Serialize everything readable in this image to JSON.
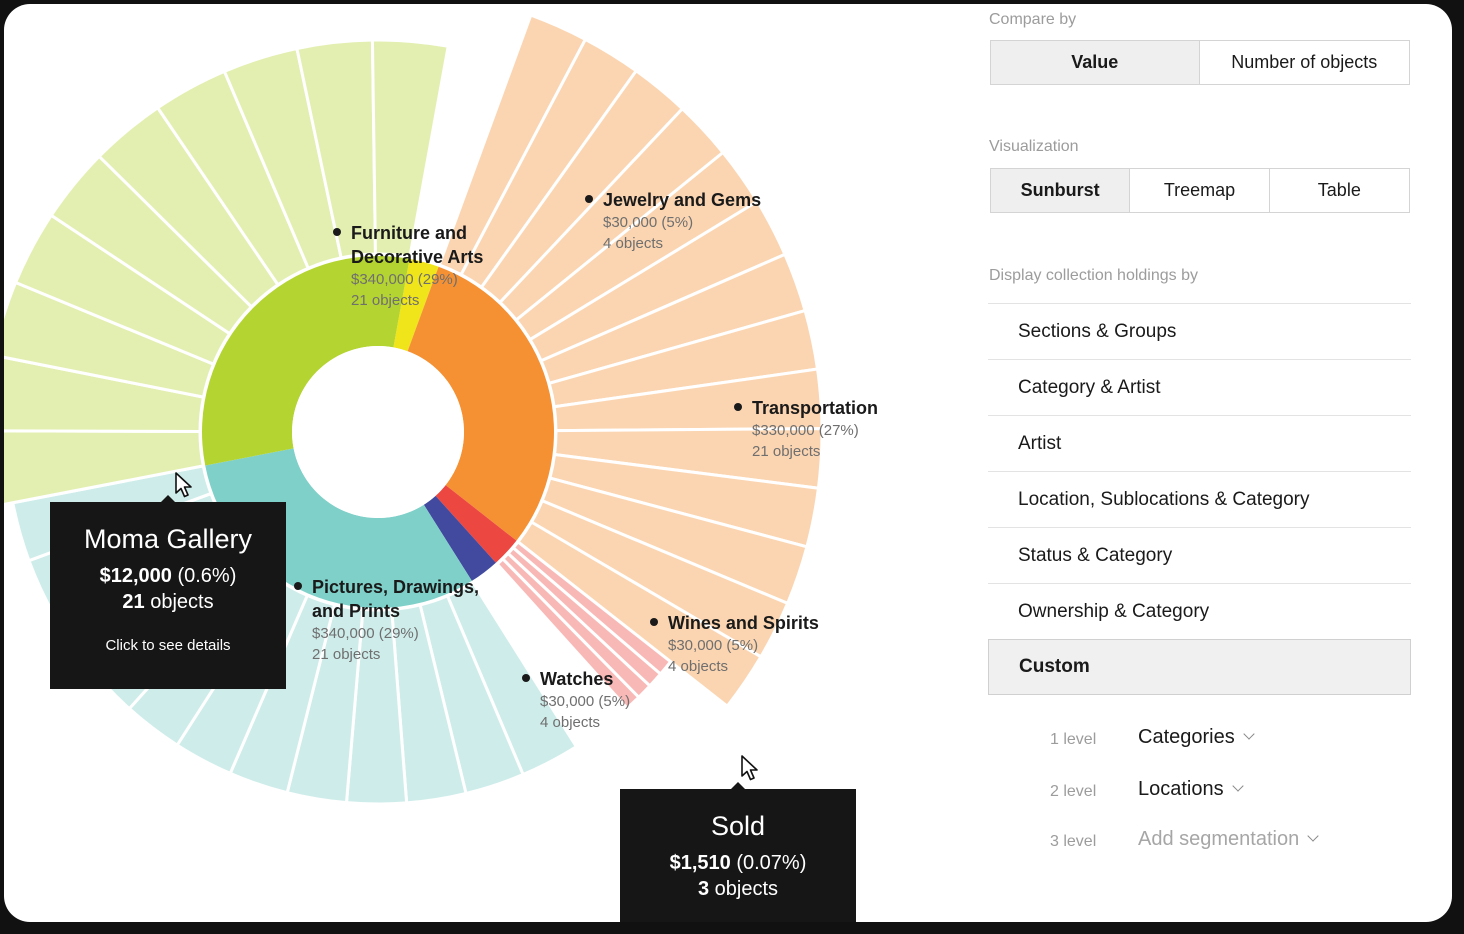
{
  "chart_data": {
    "type": "sunburst",
    "categories": [
      {
        "name": "Jewelry and Gems",
        "value": 30000,
        "percent": 5,
        "objects": 4,
        "color": "#f0e51a",
        "value_label": "$30,000 (5%)",
        "objects_label": "4 objects"
      },
      {
        "name": "Transportation",
        "value": 330000,
        "percent": 27,
        "objects": 21,
        "color": "#f59133",
        "value_label": "$330,000 (27%)",
        "objects_label": "21 objects"
      },
      {
        "name": "Wines and Spirits",
        "value": 30000,
        "percent": 5,
        "objects": 4,
        "color": "#ec4740",
        "value_label": "$30,000 (5%)",
        "objects_label": "4 objects"
      },
      {
        "name": "Watches",
        "value": 30000,
        "percent": 5,
        "objects": 4,
        "color": "#414a9f",
        "value_label": "$30,000 (5%)",
        "objects_label": "4 objects"
      },
      {
        "name": "Pictures, Drawings,\nand Prints",
        "value": 340000,
        "percent": 29,
        "objects": 21,
        "color": "#7fd0c9",
        "value_label": "$340,000 (29%)",
        "objects_label": "21 objects"
      },
      {
        "name": "Furniture and\nDecorative Arts",
        "value": 340000,
        "percent": 29,
        "objects": 21,
        "color": "#b4d432",
        "value_label": "$340,000 (29%)",
        "objects_label": "21 objects"
      }
    ],
    "tooltips": [
      {
        "title": "Moma Gallery",
        "value_bold": "$12,000",
        "value_rest": " (0.6%)",
        "count_bold": "21",
        "count_rest": " objects",
        "hint": "Click to see details"
      },
      {
        "title": "Sold",
        "value_bold": "$1,510",
        "value_rest": " (0.07%)",
        "count_bold": "3",
        "count_rest": " objects"
      }
    ]
  },
  "panel": {
    "compare_label": "Compare by",
    "compare_options": [
      "Value",
      "Number of objects"
    ],
    "compare_active": "Value",
    "viz_label": "Visualization",
    "viz_options": [
      "Sunburst",
      "Treemap",
      "Table"
    ],
    "viz_active": "Sunburst",
    "display_label": "Display collection holdings by",
    "holdings": [
      "Sections & Groups",
      "Category & Artist",
      "Artist",
      "Location, Sublocations & Category",
      "Status & Category",
      "Ownership & Category",
      "Custom"
    ],
    "holdings_active": "Custom",
    "levels": [
      {
        "level": "1 level",
        "value": "Categories"
      },
      {
        "level": "2 level",
        "value": "Locations"
      },
      {
        "level": "3 level",
        "value": "Add segmentation"
      }
    ]
  }
}
